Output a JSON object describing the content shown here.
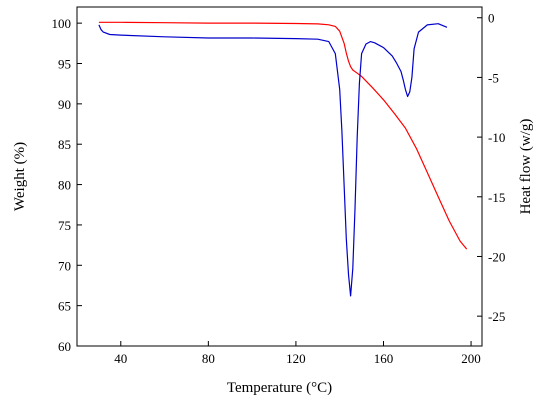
{
  "chart_data": {
    "type": "line",
    "xlabel": "Temperature (°C)",
    "ylabel_left": "Weight (%)",
    "ylabel_right": "Heat flow (w/g)",
    "xlim": [
      20,
      205
    ],
    "ylim_left": [
      60,
      102
    ],
    "ylim_right": [
      -27.5,
      0.9
    ],
    "x_ticks": [
      40,
      80,
      120,
      160,
      200
    ],
    "y_left_ticks": [
      60,
      65,
      70,
      75,
      80,
      85,
      90,
      95,
      100
    ],
    "y_right_ticks": [
      0,
      -5,
      -10,
      -15,
      -20,
      -25
    ],
    "grid": false,
    "legend": "none",
    "series": [
      {
        "axis": "left",
        "color": "#ff0000",
        "x": [
          30,
          40,
          60,
          80,
          100,
          120,
          130,
          135,
          138,
          140,
          142,
          143,
          144,
          145,
          146,
          148,
          150,
          155,
          160,
          165,
          170,
          175,
          180,
          185,
          190,
          195,
          198
        ],
        "y": [
          100.1,
          100.1,
          100.05,
          100.0,
          100.0,
          99.95,
          99.9,
          99.8,
          99.6,
          99.0,
          97.5,
          96.3,
          95.3,
          94.6,
          94.2,
          93.8,
          93.4,
          92.0,
          90.5,
          88.8,
          87.0,
          84.5,
          81.5,
          78.5,
          75.5,
          73.0,
          72.0
        ]
      },
      {
        "axis": "right",
        "color": "#0000cc",
        "x": [
          30,
          31,
          32,
          35,
          40,
          60,
          80,
          100,
          120,
          130,
          135,
          138,
          140,
          141,
          142,
          143,
          144,
          145,
          146,
          147,
          148,
          149,
          150,
          152,
          154,
          156,
          160,
          164,
          166,
          168,
          169,
          170,
          171,
          172,
          173,
          174,
          176,
          180,
          185,
          189
        ],
        "y": [
          -0.6,
          -1.0,
          -1.2,
          -1.4,
          -1.45,
          -1.6,
          -1.7,
          -1.7,
          -1.75,
          -1.8,
          -2.0,
          -3.0,
          -6.0,
          -9.5,
          -14.0,
          -18.5,
          -21.5,
          -23.3,
          -21.0,
          -16.0,
          -10.0,
          -5.5,
          -3.0,
          -2.2,
          -2.0,
          -2.1,
          -2.5,
          -3.2,
          -3.8,
          -4.5,
          -5.2,
          -6.0,
          -6.6,
          -6.2,
          -5.0,
          -2.6,
          -1.2,
          -0.6,
          -0.5,
          -0.8
        ]
      }
    ]
  }
}
